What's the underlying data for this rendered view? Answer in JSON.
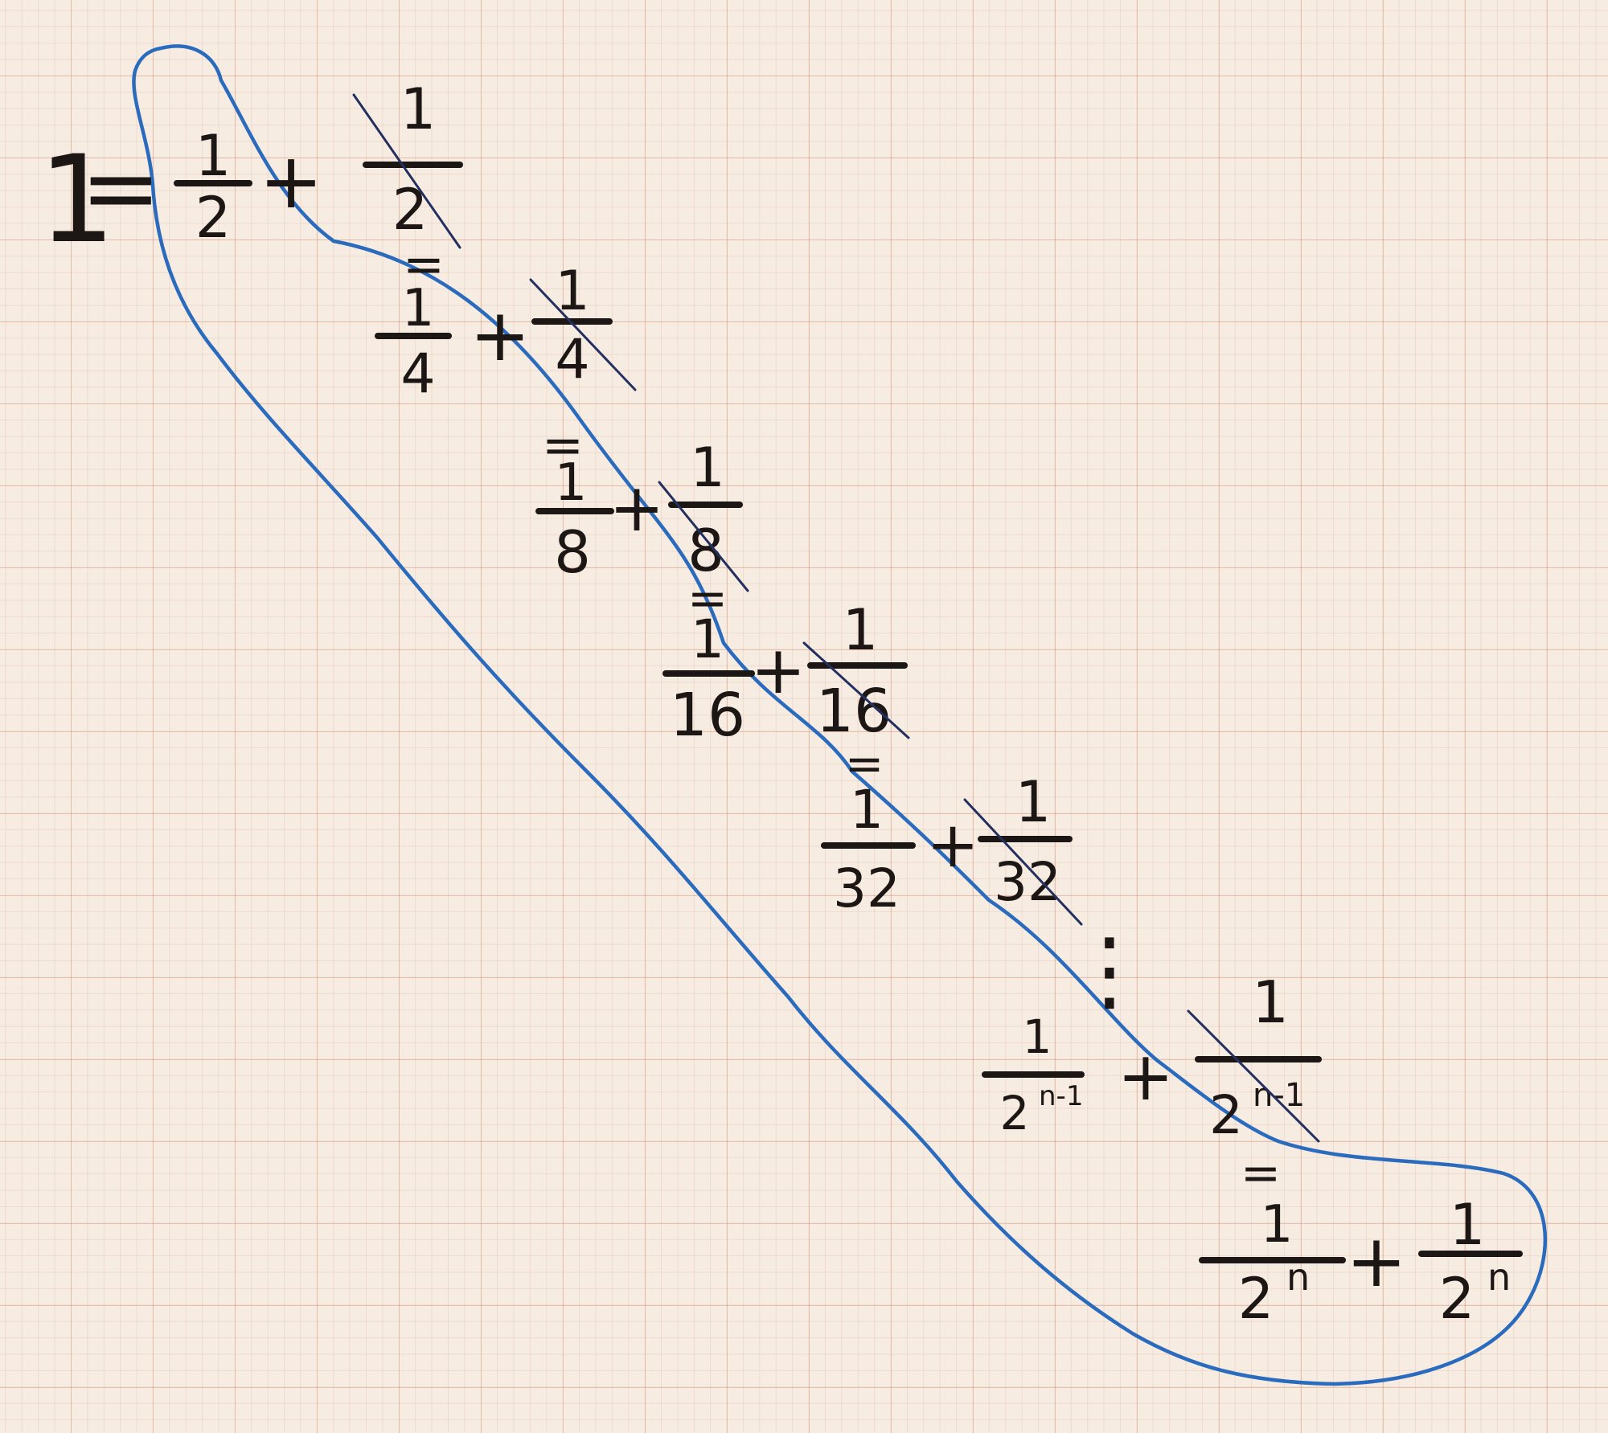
{
  "equation": {
    "start": "1",
    "equals": "=",
    "plus": "+",
    "dots": "⋮",
    "rows": [
      {
        "num": "1",
        "den": "2"
      },
      {
        "num": "1",
        "den": "4"
      },
      {
        "num": "1",
        "den": "8"
      },
      {
        "num": "1",
        "den": "16"
      },
      {
        "num": "1",
        "den": "32"
      },
      {
        "num": "1",
        "den": "2",
        "exp": "n-1"
      },
      {
        "num": "1",
        "den": "2",
        "exp": "n"
      }
    ]
  },
  "colors": {
    "paper": "#f6ece2",
    "grid": "#d68c6e",
    "ink": "#1c1614",
    "strike_line": "#23305f",
    "highlight_loop": "#2b6bbd"
  }
}
